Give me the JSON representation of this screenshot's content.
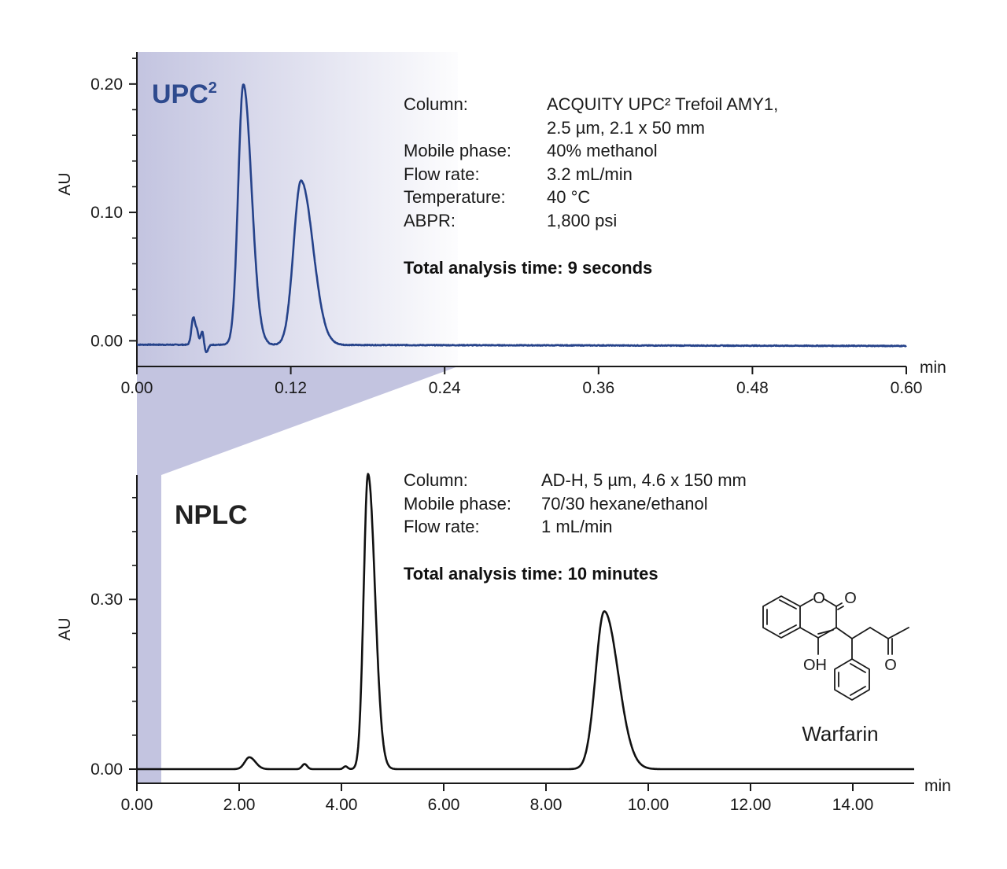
{
  "colors": {
    "upc_trace": "#25428a",
    "upc_title": "#2e4a8e",
    "npl_trace": "#111111",
    "zoom_shade": "#c3c4e0",
    "axis": "#1a1a1a"
  },
  "upc_panel": {
    "title_main": "UPC",
    "title_sup": "2",
    "info": [
      {
        "label": "Column:",
        "value": "ACQUITY UPC² Trefoil AMY1,"
      },
      {
        "label": "",
        "value": "2.5 µm, 2.1 x 50 mm"
      },
      {
        "label": "Mobile phase:",
        "value": "40% methanol"
      },
      {
        "label": "Flow rate:",
        "value": "3.2 mL/min"
      },
      {
        "label": "Temperature:",
        "value": "40 °C"
      },
      {
        "label": "ABPR:",
        "value": "1,800 psi"
      }
    ],
    "total_time": "Total analysis time: 9 seconds"
  },
  "npl_panel": {
    "title": "NPLC",
    "info": [
      {
        "label": "Column:",
        "value": "AD-H, 5 µm, 4.6 x 150 mm"
      },
      {
        "label": "Mobile phase:",
        "value": "70/30 hexane/ethanol"
      },
      {
        "label": "Flow rate:",
        "value": "1 mL/min"
      }
    ],
    "total_time": "Total analysis time: 10 minutes"
  },
  "molecule": {
    "name": "Warfarin",
    "atom_labels": {
      "ring_o": "O",
      "carbonyl_o": "O",
      "hydroxyl": "OH",
      "ketone_o": "O"
    }
  },
  "chart_data": [
    {
      "type": "line",
      "title": "UPC²",
      "xlabel": "min",
      "ylabel": "AU",
      "xlim": [
        0.0,
        0.6
      ],
      "ylim": [
        -0.02,
        0.225
      ],
      "x_ticks": [
        "0.00",
        "0.12",
        "0.24",
        "0.36",
        "0.48",
        "0.60"
      ],
      "y_ticks": [
        "0.00",
        "0.10",
        "0.20"
      ],
      "grid": false,
      "series": [
        {
          "baseline": -0.004,
          "baseline_start": -0.003,
          "baseline_end": -0.004,
          "peaks": [
            {
              "rt": 0.044,
              "height": 0.021,
              "width": 0.0015
            },
            {
              "rt": 0.047,
              "height": 0.009,
              "width": 0.0012
            },
            {
              "rt": 0.051,
              "height": 0.011,
              "width": 0.0012
            },
            {
              "rt": 0.054,
              "height": -0.006,
              "width": 0.0015
            },
            {
              "rt": 0.083,
              "height": 0.203,
              "width": 0.004,
              "tail": 1.6
            },
            {
              "rt": 0.128,
              "height": 0.128,
              "width": 0.0058,
              "tail": 1.6
            }
          ]
        }
      ]
    },
    {
      "type": "line",
      "title": "NPLC",
      "xlabel": "min",
      "ylabel": "AU",
      "xlim": [
        0.0,
        15.2
      ],
      "ylim": [
        -0.025,
        0.52
      ],
      "x_ticks": [
        "0.00",
        "2.00",
        "4.00",
        "6.00",
        "8.00",
        "10.00",
        "12.00",
        "14.00"
      ],
      "y_ticks": [
        "0.00",
        "0.30"
      ],
      "grid": false,
      "series": [
        {
          "baseline": 0.0,
          "peaks": [
            {
              "rt": 2.2,
              "height": 0.021,
              "width": 0.09,
              "tail": 1.3
            },
            {
              "rt": 3.28,
              "height": 0.009,
              "width": 0.05
            },
            {
              "rt": 4.08,
              "height": 0.005,
              "width": 0.04
            },
            {
              "rt": 4.52,
              "height": 0.522,
              "width": 0.085,
              "tail": 1.6
            },
            {
              "rt": 9.14,
              "height": 0.279,
              "width": 0.17,
              "tail": 1.6
            }
          ]
        }
      ]
    }
  ]
}
